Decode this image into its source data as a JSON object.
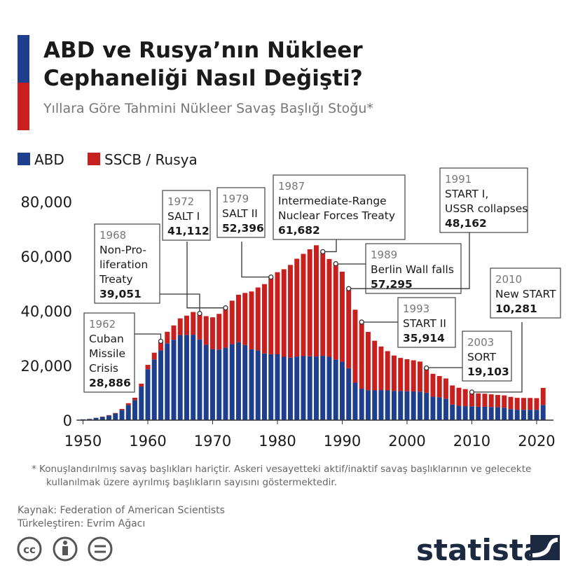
{
  "header": {
    "title_lines": [
      "ABD ve Rusya’nın Nükleer",
      "Cephaneliği Nasıl Değişti?"
    ],
    "subtitle": "Yıllara Göre Tahmini Nükleer Savaş Başlığı Stoğu*"
  },
  "chart_data": {
    "type": "bar",
    "stacked": true,
    "x": [
      1950,
      1951,
      1952,
      1953,
      1954,
      1955,
      1956,
      1957,
      1958,
      1959,
      1960,
      1961,
      1962,
      1963,
      1964,
      1965,
      1966,
      1967,
      1968,
      1969,
      1970,
      1971,
      1972,
      1973,
      1974,
      1975,
      1976,
      1977,
      1978,
      1979,
      1980,
      1981,
      1982,
      1983,
      1984,
      1985,
      1986,
      1987,
      1988,
      1989,
      1990,
      1991,
      1992,
      1993,
      1994,
      1995,
      1996,
      1997,
      1998,
      1999,
      2000,
      2001,
      2002,
      2003,
      2004,
      2005,
      2006,
      2007,
      2008,
      2009,
      2010,
      2011,
      2012,
      2013,
      2014,
      2015,
      2016,
      2017,
      2018,
      2019,
      2020,
      2021
    ],
    "series": [
      {
        "name": "ABD",
        "color": "#1d3f8e",
        "values": [
          299,
          438,
          841,
          1169,
          1703,
          2422,
          3692,
          5543,
          7345,
          12298,
          18638,
          22229,
          25540,
          28133,
          29463,
          31139,
          31175,
          31255,
          29561,
          27552,
          26008,
          25830,
          26516,
          27835,
          28537,
          27519,
          25914,
          25542,
          24418,
          24138,
          24104,
          23208,
          22886,
          23305,
          23459,
          23368,
          23317,
          23575,
          23205,
          22217,
          21392,
          19008,
          13708,
          11511,
          10979,
          10904,
          11011,
          10903,
          10732,
          10685,
          10577,
          10526,
          10457,
          10027,
          8570,
          8360,
          7853,
          5709,
          5273,
          5113,
          5066,
          4897,
          4881,
          4804,
          4717,
          4571,
          4018,
          3822,
          3785,
          3805,
          3750,
          5550
        ]
      },
      {
        "name": "SSCB / Rusya",
        "color": "#c8201e",
        "values": [
          5,
          25,
          50,
          120,
          150,
          200,
          426,
          660,
          869,
          1060,
          1605,
          2471,
          3346,
          4238,
          5221,
          6129,
          7089,
          8339,
          9490,
          10538,
          11643,
          13092,
          14596,
          15915,
          17385,
          19055,
          21205,
          23044,
          25393,
          28258,
          30062,
          32049,
          33952,
          35804,
          37431,
          39197,
          40723,
          38107,
          35805,
          35078,
          32980,
          29154,
          26734,
          24403,
          21339,
          18179,
          15942,
          14372,
          12931,
          12101,
          11737,
          11395,
          10991,
          9076,
          8400,
          7800,
          7400,
          7000,
          6600,
          6250,
          5215,
          4900,
          4800,
          4650,
          4500,
          4500,
          4500,
          4350,
          4350,
          4330,
          4310,
          6257
        ]
      }
    ],
    "xlim": [
      1949,
      2022.6
    ],
    "xticks": [
      1950,
      1960,
      1970,
      1980,
      1990,
      2000,
      2010,
      2020
    ],
    "ylim": [
      0,
      80000
    ],
    "yticks": [
      0,
      {
        "value": 20000,
        "label": "20,000"
      },
      {
        "value": 40000,
        "label": "40,000"
      },
      {
        "value": 60000,
        "label": "60,000"
      },
      {
        "value": 80000,
        "label": "80,000"
      }
    ],
    "legend": "top-left",
    "grid": false,
    "annotations": [
      {
        "year": 1962,
        "lines": [
          "Cuban",
          "Missile",
          "Crisis"
        ],
        "total": "28,886"
      },
      {
        "year": 1968,
        "lines": [
          "Non-Pro-",
          "liferation",
          "Treaty"
        ],
        "total": "39,051"
      },
      {
        "year": 1972,
        "lines": [
          "SALT I"
        ],
        "total": "41,112"
      },
      {
        "year": 1979,
        "lines": [
          "SALT II"
        ],
        "total": "52,396"
      },
      {
        "year": 1987,
        "lines": [
          "Intermediate-Range",
          "Nuclear Forces Treaty"
        ],
        "total": "61,682"
      },
      {
        "year": 1989,
        "lines": [
          "Berlin Wall falls"
        ],
        "total": "57,295"
      },
      {
        "year": 1991,
        "lines": [
          "START I,",
          "USSR collapses"
        ],
        "total": "48,162"
      },
      {
        "year": 1993,
        "lines": [
          "START II"
        ],
        "total": "35,914"
      },
      {
        "year": 2003,
        "lines": [
          "SORT"
        ],
        "total": "19,103"
      },
      {
        "year": 2010,
        "lines": [
          "New START"
        ],
        "total": "10,281"
      }
    ]
  },
  "footer": {
    "note_lines": [
      "*  Konuşlandırılmış savaş başlıkları hariçtir. Askeri vesayetteki aktif/inaktif savaş başlıklarının ve gelecekte",
      "kullanılmak üzere ayrılmış başlıkların sayısını göstermektedir."
    ],
    "source": "Kaynak: Federation of American Scientists",
    "translator": "Türkeleştiren: Evrim Ağacı",
    "license_icon": "cc",
    "brand": "statista"
  }
}
